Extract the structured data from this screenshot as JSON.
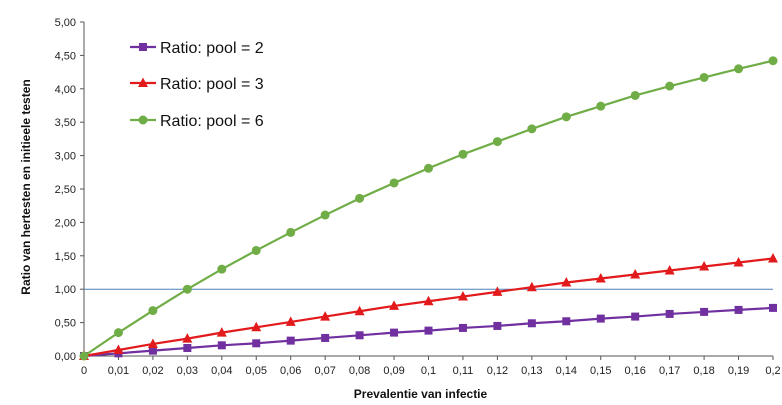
{
  "chart_data": {
    "type": "line",
    "title": "",
    "xlabel": "Prevalentie van infectie",
    "ylabel": "Ratio van hertesten en initieele testen",
    "x": [
      0,
      0.01,
      0.02,
      0.03,
      0.04,
      0.05,
      0.06,
      0.07,
      0.08,
      0.09,
      0.1,
      0.11,
      0.12,
      0.13,
      0.14,
      0.15,
      0.16,
      0.17,
      0.18,
      0.19,
      0.2
    ],
    "x_tick_labels": [
      "0",
      "0,01",
      "0,02",
      "0,03",
      "0,04",
      "0,05",
      "0,06",
      "0,07",
      "0,08",
      "0,09",
      "0,1",
      "0,11",
      "0,12",
      "0,13",
      "0,14",
      "0,15",
      "0,16",
      "0,17",
      "0,18",
      "0,19",
      "0,2"
    ],
    "xlim": [
      0,
      0.2
    ],
    "ylim": [
      0,
      5
    ],
    "y_ticks": [
      0,
      0.5,
      1,
      1.5,
      2,
      2.5,
      3,
      3.5,
      4,
      4.5,
      5
    ],
    "y_tick_labels": [
      "0,00",
      "0,50",
      "1,00",
      "1,50",
      "2,00",
      "2,50",
      "3,00",
      "3,50",
      "4,00",
      "4,50",
      "5,00"
    ],
    "reference_line_y": 1,
    "grid": false,
    "legend": "top-left",
    "series": [
      {
        "name": "Ratio: pool = 2",
        "color": "#7030a0",
        "marker": "square",
        "values": [
          0,
          0.04,
          0.08,
          0.12,
          0.16,
          0.19,
          0.23,
          0.27,
          0.31,
          0.35,
          0.38,
          0.42,
          0.45,
          0.49,
          0.52,
          0.56,
          0.59,
          0.63,
          0.66,
          0.69,
          0.72
        ]
      },
      {
        "name": "Ratio: pool = 3",
        "color": "#e31a1c",
        "marker": "triangle",
        "values": [
          0,
          0.09,
          0.18,
          0.26,
          0.35,
          0.43,
          0.51,
          0.59,
          0.67,
          0.75,
          0.82,
          0.89,
          0.96,
          1.03,
          1.1,
          1.16,
          1.22,
          1.28,
          1.34,
          1.4,
          1.46
        ]
      },
      {
        "name": "Ratio: pool = 6",
        "color": "#70ad47",
        "marker": "circle",
        "values": [
          0,
          0.35,
          0.68,
          1.0,
          1.3,
          1.58,
          1.85,
          2.11,
          2.36,
          2.59,
          2.81,
          3.02,
          3.21,
          3.4,
          3.58,
          3.74,
          3.9,
          4.04,
          4.17,
          4.3,
          4.42
        ]
      }
    ]
  }
}
